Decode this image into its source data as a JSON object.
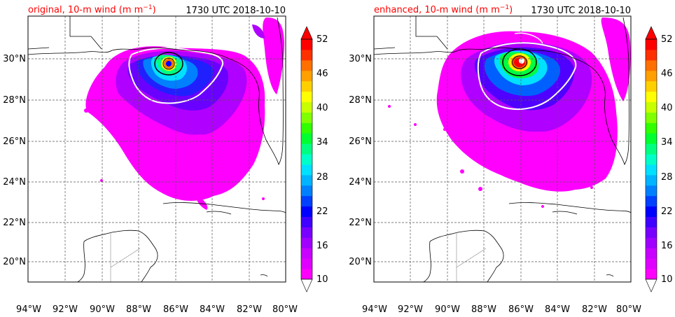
{
  "panels": [
    {
      "id": "original",
      "title_left": "original, 10-m wind (m m",
      "title_sup": "−1",
      "title_close": ")",
      "title_right": "1730 UTC 2018-10-10"
    },
    {
      "id": "enhanced",
      "title_left": "enhanced, 10-m wind (m m",
      "title_sup": "−1",
      "title_close": ")",
      "title_right": "1730 UTC 2018-10-10"
    }
  ],
  "map": {
    "lon_ticks": [
      "94°W",
      "92°W",
      "90°W",
      "88°W",
      "86°W",
      "84°W",
      "82°W",
      "80°W"
    ],
    "lat_ticks": [
      "30°N",
      "28°N",
      "26°N",
      "24°N",
      "22°N",
      "20°N"
    ],
    "gridlines": true
  },
  "colorbar": {
    "ticks": [
      "52",
      "46",
      "40",
      "34",
      "28",
      "22",
      "16",
      "10"
    ],
    "extend": "both",
    "colors": [
      "#ff00ff",
      "#e000ff",
      "#c800ff",
      "#a000ff",
      "#7800ff",
      "#4000ff",
      "#0000ff",
      "#0040ff",
      "#0080ff",
      "#00b4ff",
      "#00e0ff",
      "#00ffc8",
      "#00ff80",
      "#00ff30",
      "#30ff00",
      "#80ff00",
      "#c8ff00",
      "#ffff00",
      "#ffd000",
      "#ffa000",
      "#ff7000",
      "#ff3000",
      "#ff0000"
    ]
  },
  "colors": {
    "title_red": "#ff0000",
    "land_outline": "#000000",
    "contour_white": "#ffffff"
  }
}
